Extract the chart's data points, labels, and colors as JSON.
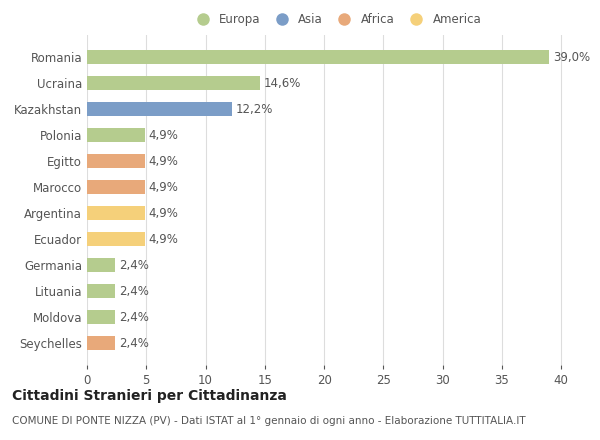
{
  "categories": [
    "Romania",
    "Ucraina",
    "Kazakhstan",
    "Polonia",
    "Egitto",
    "Marocco",
    "Argentina",
    "Ecuador",
    "Germania",
    "Lituania",
    "Moldova",
    "Seychelles"
  ],
  "values": [
    39.0,
    14.6,
    12.2,
    4.9,
    4.9,
    4.9,
    4.9,
    4.9,
    2.4,
    2.4,
    2.4,
    2.4
  ],
  "labels": [
    "39,0%",
    "14,6%",
    "12,2%",
    "4,9%",
    "4,9%",
    "4,9%",
    "4,9%",
    "4,9%",
    "2,4%",
    "2,4%",
    "2,4%",
    "2,4%"
  ],
  "colors": [
    "#b5cc8e",
    "#b5cc8e",
    "#7b9dc7",
    "#b5cc8e",
    "#e8a97a",
    "#e8a97a",
    "#f5d07a",
    "#f5d07a",
    "#b5cc8e",
    "#b5cc8e",
    "#b5cc8e",
    "#e8a97a"
  ],
  "legend": [
    {
      "label": "Europa",
      "color": "#b5cc8e"
    },
    {
      "label": "Asia",
      "color": "#7b9dc7"
    },
    {
      "label": "Africa",
      "color": "#e8a97a"
    },
    {
      "label": "America",
      "color": "#f5d07a"
    }
  ],
  "xlim": [
    0,
    42
  ],
  "xticks": [
    0,
    5,
    10,
    15,
    20,
    25,
    30,
    35,
    40
  ],
  "title": "Cittadini Stranieri per Cittadinanza",
  "subtitle": "COMUNE DI PONTE NIZZA (PV) - Dati ISTAT al 1° gennaio di ogni anno - Elaborazione TUTTITALIA.IT",
  "background_color": "#ffffff",
  "grid_color": "#dddddd",
  "bar_height": 0.55,
  "text_color": "#555555",
  "title_fontsize": 10,
  "subtitle_fontsize": 7.5,
  "label_fontsize": 8.5,
  "tick_fontsize": 8.5
}
